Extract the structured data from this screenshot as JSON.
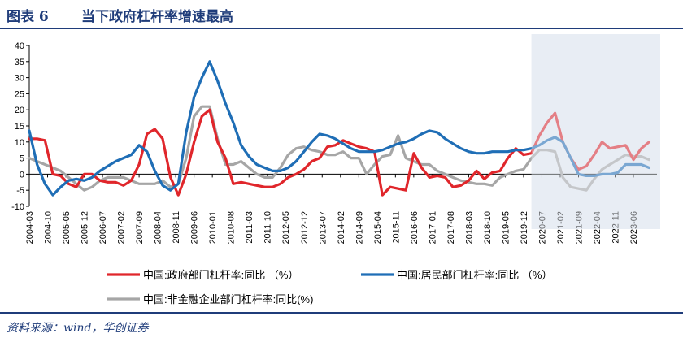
{
  "figure": {
    "number": "图表 6",
    "title": "当下政府杠杆率增速最高",
    "source": "资料来源：wind，华创证券"
  },
  "colors": {
    "government": "#e0262b",
    "household": "#1f6eb6",
    "nonfinancial": "#a6a6a6",
    "highlight": "#e8edf4",
    "brand": "#1f3c7a"
  },
  "chart_data": {
    "type": "line",
    "ylim": [
      -10,
      40
    ],
    "yticks": [
      -10,
      -5,
      0,
      5,
      10,
      15,
      20,
      25,
      30,
      35,
      40
    ],
    "x_tick_labels": [
      "2004-03",
      "2004-10",
      "2005-05",
      "2005-12",
      "2006-07",
      "2007-02",
      "2007-09",
      "2008-04",
      "2008-11",
      "2009-06",
      "2010-01",
      "2010-08",
      "2011-03",
      "2011-10",
      "2012-05",
      "2012-12",
      "2013-07",
      "2014-02",
      "2014-09",
      "2015-04",
      "2015-11",
      "2016-06",
      "2017-01",
      "2017-08",
      "2018-03",
      "2018-10",
      "2019-05",
      "2019-12",
      "2020-07",
      "2021-02",
      "2021-09",
      "2022-04",
      "2022-11",
      "2023-06"
    ],
    "x_range": [
      "2004-03",
      "2024-03"
    ],
    "highlight_start": "2020-03",
    "legend": [
      "中国:政府部门杠杆率:同比 （%）",
      "中国:居民部门杠杆率:同比 （%）",
      "中国:非金融企业部门杠杆率:同比(%)"
    ],
    "series": [
      {
        "name": "中国:政府部门杠杆率:同比 （%）",
        "x": [
          "2004-03",
          "2004-06",
          "2004-09",
          "2004-12",
          "2005-03",
          "2005-06",
          "2005-09",
          "2005-12",
          "2006-03",
          "2006-06",
          "2006-09",
          "2006-12",
          "2007-03",
          "2007-06",
          "2007-09",
          "2007-12",
          "2008-03",
          "2008-06",
          "2008-09",
          "2008-12",
          "2009-03",
          "2009-06",
          "2009-09",
          "2009-12",
          "2010-03",
          "2010-06",
          "2010-09",
          "2010-12",
          "2011-03",
          "2011-06",
          "2011-09",
          "2011-12",
          "2012-03",
          "2012-06",
          "2012-09",
          "2012-12",
          "2013-03",
          "2013-06",
          "2013-09",
          "2013-12",
          "2014-03",
          "2014-06",
          "2014-09",
          "2014-12",
          "2015-03",
          "2015-06",
          "2015-09",
          "2015-12",
          "2016-03",
          "2016-06",
          "2016-09",
          "2016-12",
          "2017-03",
          "2017-06",
          "2017-09",
          "2017-12",
          "2018-03",
          "2018-06",
          "2018-09",
          "2018-12",
          "2019-03",
          "2019-06",
          "2019-09",
          "2019-12",
          "2020-03",
          "2020-06",
          "2020-09",
          "2020-12",
          "2021-03",
          "2021-06",
          "2021-09",
          "2021-12",
          "2022-03",
          "2022-06",
          "2022-09",
          "2022-12",
          "2023-03",
          "2023-06",
          "2023-09",
          "2023-12"
        ],
        "values": [
          11,
          11,
          10.5,
          0,
          -0.5,
          -3,
          -4,
          0,
          0,
          -2,
          -2.5,
          -2.5,
          -3.5,
          -2,
          3,
          12.5,
          14,
          11,
          -1,
          -6.5,
          0,
          10,
          18,
          20,
          10,
          5,
          -3,
          -2.5,
          -3,
          -3.5,
          -4,
          -4,
          -3,
          -1,
          0,
          1.5,
          4,
          5,
          8.5,
          9,
          10.5,
          9.5,
          8.5,
          8,
          7,
          -6.5,
          -4,
          -4.5,
          -5,
          6.5,
          2,
          -1,
          -0.5,
          -1,
          -4,
          -3.5,
          -2,
          1,
          -1.5,
          0.5,
          1,
          5,
          8,
          6,
          6.5,
          12,
          16,
          19,
          10,
          5,
          1.5,
          2.5,
          6,
          10,
          8,
          8.5,
          9,
          4.5,
          8,
          10
        ]
      },
      {
        "name": "中国:居民部门杠杆率:同比 （%）",
        "x": [
          "2004-03",
          "2004-06",
          "2004-09",
          "2004-12",
          "2005-03",
          "2005-06",
          "2005-09",
          "2005-12",
          "2006-03",
          "2006-06",
          "2006-09",
          "2006-12",
          "2007-03",
          "2007-06",
          "2007-09",
          "2007-12",
          "2008-03",
          "2008-06",
          "2008-09",
          "2008-12",
          "2009-03",
          "2009-06",
          "2009-09",
          "2009-12",
          "2010-03",
          "2010-06",
          "2010-09",
          "2010-12",
          "2011-03",
          "2011-06",
          "2011-09",
          "2011-12",
          "2012-03",
          "2012-06",
          "2012-09",
          "2012-12",
          "2013-03",
          "2013-06",
          "2013-09",
          "2013-12",
          "2014-03",
          "2014-06",
          "2014-09",
          "2014-12",
          "2015-03",
          "2015-06",
          "2015-09",
          "2015-12",
          "2016-03",
          "2016-06",
          "2016-09",
          "2016-12",
          "2017-03",
          "2017-06",
          "2017-09",
          "2017-12",
          "2018-03",
          "2018-06",
          "2018-09",
          "2018-12",
          "2019-03",
          "2019-06",
          "2019-09",
          "2019-12",
          "2020-03",
          "2020-06",
          "2020-09",
          "2020-12",
          "2021-03",
          "2021-06",
          "2021-09",
          "2021-12",
          "2022-03",
          "2022-06",
          "2022-09",
          "2022-12",
          "2023-03",
          "2023-06",
          "2023-09",
          "2023-12"
        ],
        "values": [
          13.5,
          3,
          -3,
          -6.5,
          -4,
          -2,
          -1.5,
          -2,
          -1,
          1,
          2.5,
          4,
          5,
          6,
          9,
          7,
          1,
          -3.5,
          -5,
          -3,
          13,
          24,
          30,
          35,
          29,
          22,
          16,
          9,
          5.5,
          3,
          2,
          1,
          1,
          2,
          4,
          7,
          10,
          12.5,
          12,
          11,
          9.5,
          8,
          7,
          7,
          7,
          7.5,
          8.5,
          9.5,
          10,
          11,
          12.5,
          13.5,
          13,
          11,
          9.5,
          8,
          7,
          6.5,
          6.5,
          7,
          7,
          7,
          7.5,
          7.5,
          8,
          9,
          10.5,
          11.5,
          10,
          5,
          0,
          -0.5,
          -0.5,
          0,
          0,
          0.5,
          3,
          3,
          3,
          2
        ]
      },
      {
        "name": "中国:非金融企业部门杠杆率:同比(%)",
        "x": [
          "2004-03",
          "2004-06",
          "2004-09",
          "2004-12",
          "2005-03",
          "2005-06",
          "2005-09",
          "2005-12",
          "2006-03",
          "2006-06",
          "2006-09",
          "2006-12",
          "2007-03",
          "2007-06",
          "2007-09",
          "2007-12",
          "2008-03",
          "2008-06",
          "2008-09",
          "2008-12",
          "2009-03",
          "2009-06",
          "2009-09",
          "2009-12",
          "2010-03",
          "2010-06",
          "2010-09",
          "2010-12",
          "2011-03",
          "2011-06",
          "2011-09",
          "2011-12",
          "2012-03",
          "2012-06",
          "2012-09",
          "2012-12",
          "2013-03",
          "2013-06",
          "2013-09",
          "2013-12",
          "2014-03",
          "2014-06",
          "2014-09",
          "2014-12",
          "2015-03",
          "2015-06",
          "2015-09",
          "2015-12",
          "2016-03",
          "2016-06",
          "2016-09",
          "2016-12",
          "2017-03",
          "2017-06",
          "2017-09",
          "2017-12",
          "2018-03",
          "2018-06",
          "2018-09",
          "2018-12",
          "2019-03",
          "2019-06",
          "2019-09",
          "2019-12",
          "2020-03",
          "2020-06",
          "2020-09",
          "2020-12",
          "2021-03",
          "2021-06",
          "2021-09",
          "2021-12",
          "2022-03",
          "2022-06",
          "2022-09",
          "2022-12",
          "2023-03",
          "2023-06",
          "2023-09",
          "2023-12"
        ],
        "values": [
          5,
          4,
          3,
          2,
          1,
          -1,
          -3,
          -5,
          -4,
          -2,
          -1,
          -1,
          -1,
          -2,
          -3,
          -3,
          -3,
          -2,
          -4,
          -3,
          5,
          18,
          21,
          21,
          11,
          3,
          3,
          4,
          2,
          0,
          -1,
          -1,
          2,
          6,
          8,
          8.5,
          7.5,
          7,
          6,
          6,
          7,
          5,
          5,
          0,
          3,
          5.5,
          6,
          12,
          5,
          4,
          3,
          3,
          1,
          0,
          -1,
          -2,
          -2.5,
          -3,
          -3,
          -3.5,
          -1,
          0,
          1,
          1.5,
          5,
          7.5,
          7.5,
          7,
          -1,
          -4,
          -4.5,
          -5,
          -1.5,
          1.5,
          3,
          4.5,
          6,
          5.5,
          5.5,
          4.5
        ]
      }
    ]
  }
}
